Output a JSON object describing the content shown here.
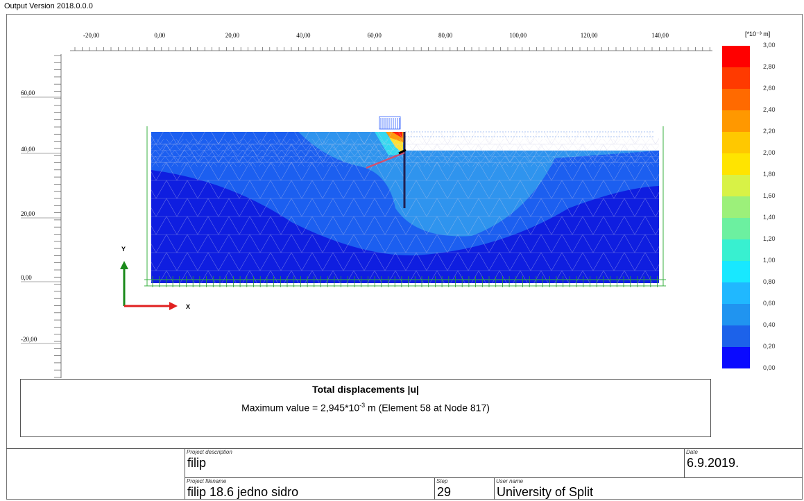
{
  "version_label": "Output Version 2018.0.0.0",
  "plot": {
    "x_ticks": [
      "-20,00",
      "0,00",
      "20,00",
      "40,00",
      "60,00",
      "80,00",
      "100,00",
      "120,00",
      "140,00"
    ],
    "y_ticks": [
      "60,00",
      "40,00",
      "20,00",
      "0,00",
      "-20,00"
    ],
    "axis_y_label": "Y",
    "axis_x_label": "X",
    "colors": {
      "layer_light": "#2f94ee",
      "layer_mid": "#1c5ff0",
      "layer_deep": "#0f1ee0",
      "wall": "#202050",
      "anchor": "#d05070"
    }
  },
  "legend": {
    "unit": "[*10⁻³ m]",
    "labels": [
      "3,00",
      "2,80",
      "2,60",
      "2,40",
      "2,20",
      "2,00",
      "1,80",
      "1,60",
      "1,40",
      "1,20",
      "1,00",
      "0,80",
      "0,60",
      "0,40",
      "0,20",
      "0,00"
    ],
    "colors": [
      "#ff0000",
      "#ff3a00",
      "#ff6a00",
      "#ff9800",
      "#ffc800",
      "#ffe400",
      "#d8f246",
      "#9cf07a",
      "#6cf0a0",
      "#38f0d0",
      "#18e8ff",
      "#20b8ff",
      "#2094f0",
      "#1c62ea",
      "#1232e4",
      "#0a0aff"
    ]
  },
  "caption": {
    "title": "Total displacements |u|",
    "text_prefix": "Maximum value = 2,945*10",
    "exponent": "-3",
    "text_suffix": " m (Element 58 at Node 817)"
  },
  "info": {
    "project_description_label": "Project description",
    "project_description": "filip",
    "date_label": "Date",
    "date": "6.9.2019.",
    "project_filename_label": "Project filename",
    "project_filename": "filip 18.6 jedno sidro",
    "step_label": "Step",
    "step": "29",
    "user_name_label": "User name",
    "user_name": "University of Split"
  }
}
